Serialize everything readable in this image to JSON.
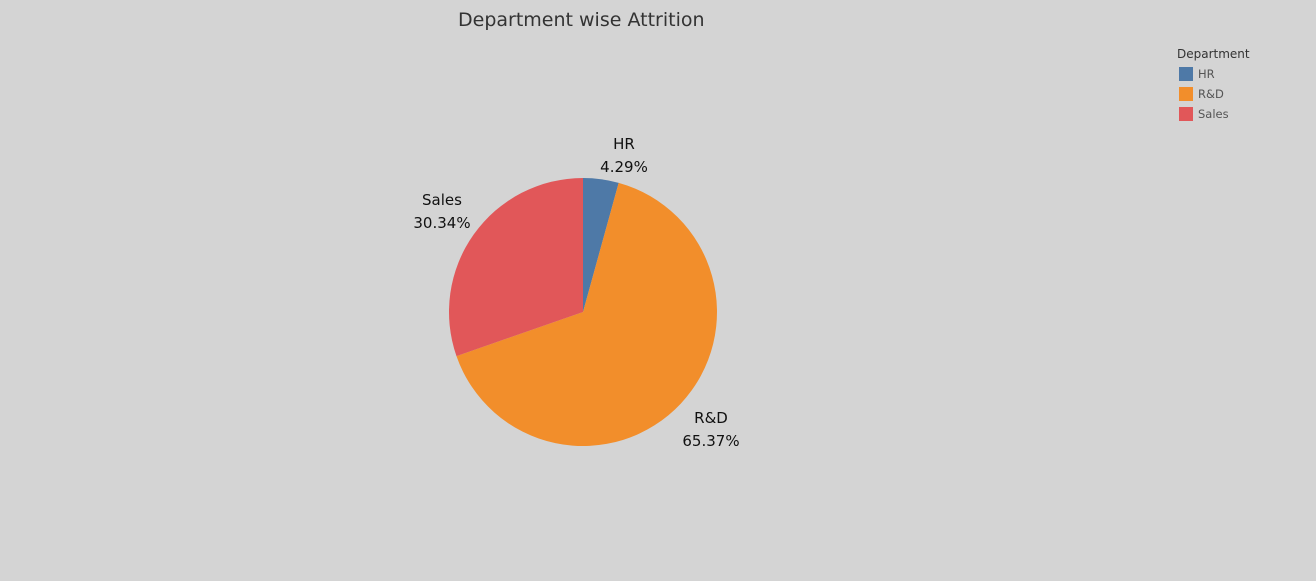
{
  "chart_data": {
    "type": "pie",
    "title": "Department wise Attrition",
    "slices": [
      {
        "label": "HR",
        "value": 4.29,
        "value_label": "4.29%",
        "color": "#4e79a7"
      },
      {
        "label": "R&D",
        "value": 65.37,
        "value_label": "65.37%",
        "color": "#f28e2b"
      },
      {
        "label": "Sales",
        "value": 30.34,
        "value_label": "30.34%",
        "color": "#e15759"
      }
    ],
    "legend": {
      "title": "Department",
      "placement": "top-right",
      "items": [
        {
          "label": "HR",
          "color": "#4e79a7"
        },
        {
          "label": "R&D",
          "color": "#f28e2b"
        },
        {
          "label": "Sales",
          "color": "#e15759"
        }
      ]
    }
  }
}
